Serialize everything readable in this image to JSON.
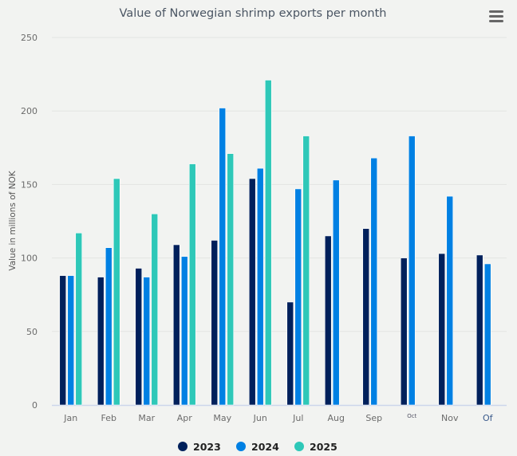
{
  "chart_data": {
    "type": "bar",
    "title": "Value of Norwegian shrimp exports per month",
    "xlabel": "",
    "ylabel": "Value in millions of NOK",
    "ylim": [
      0,
      250
    ],
    "yticks": [
      0,
      50,
      100,
      150,
      200,
      250
    ],
    "grid": true,
    "legend_position": "bottom",
    "categories": [
      "Jan",
      "Feb",
      "Mar",
      "Apr",
      "May",
      "Jun",
      "Jul",
      "Aug",
      "Sep",
      "Oct",
      "Nov",
      "Of"
    ],
    "series": [
      {
        "name": "2023",
        "color": "#00205b",
        "values": [
          88,
          87,
          93,
          109,
          112,
          154,
          70,
          115,
          120,
          100,
          103,
          102
        ]
      },
      {
        "name": "2024",
        "color": "#0080e3",
        "values": [
          88,
          107,
          87,
          101,
          202,
          161,
          147,
          153,
          168,
          183,
          142,
          96
        ]
      },
      {
        "name": "2025",
        "color": "#2ec8b8",
        "values": [
          117,
          154,
          130,
          164,
          171,
          221,
          183,
          null,
          null,
          null,
          null,
          null
        ]
      }
    ]
  },
  "menu_icon": "hamburger-menu-icon"
}
